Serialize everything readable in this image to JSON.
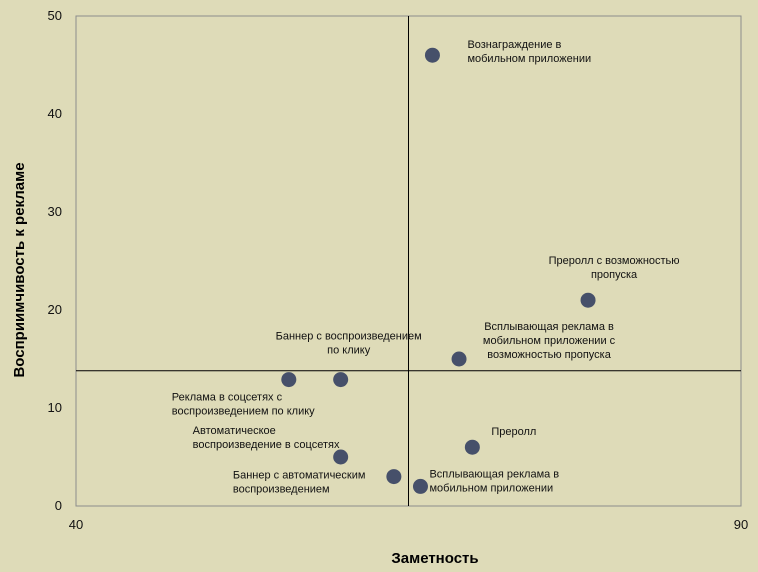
{
  "chart_data": {
    "type": "scatter",
    "title": "",
    "xlabel": "Заметность",
    "ylabel": "Восприимчивость к рекламе",
    "xlim": [
      40,
      90
    ],
    "ylim": [
      0,
      50
    ],
    "x_ticks": [
      "40",
      "90"
    ],
    "y_ticks": [
      "0",
      "10",
      "20",
      "30",
      "40",
      "50"
    ],
    "grid": false,
    "reference_lines": {
      "x": 65,
      "y": 13.8
    },
    "marker_color": "#46506a",
    "background_color": "#dedbb8",
    "points": [
      {
        "label": [
          "Вознаграждение в",
          "мобильном приложении"
        ],
        "x": 66.8,
        "y": 46
      },
      {
        "label": [
          "Преролл с возможностью",
          "пропуска"
        ],
        "x": 78.5,
        "y": 21
      },
      {
        "label": [
          "Всплывающая реклама в",
          "мобильном приложении с",
          "возможностью пропуска"
        ],
        "x": 68.8,
        "y": 15
      },
      {
        "label": [
          "Баннер с воспроизведением",
          "по клику"
        ],
        "x": 59.9,
        "y": 12.9
      },
      {
        "label": [
          "Реклама в соцсетях с",
          "воспроизведением по клику"
        ],
        "x": 56,
        "y": 12.9
      },
      {
        "label": [
          "Преролл"
        ],
        "x": 69.8,
        "y": 6
      },
      {
        "label": [
          "Автоматическое",
          "воспроизведение в соцсетях"
        ],
        "x": 59.9,
        "y": 5
      },
      {
        "label": [
          "Баннер с автоматическим",
          "воспроизведением"
        ],
        "x": 63.9,
        "y": 3
      },
      {
        "label": [
          "Всплывающая реклама в",
          "мобильном приложении"
        ],
        "x": 65.9,
        "y": 2
      }
    ]
  }
}
